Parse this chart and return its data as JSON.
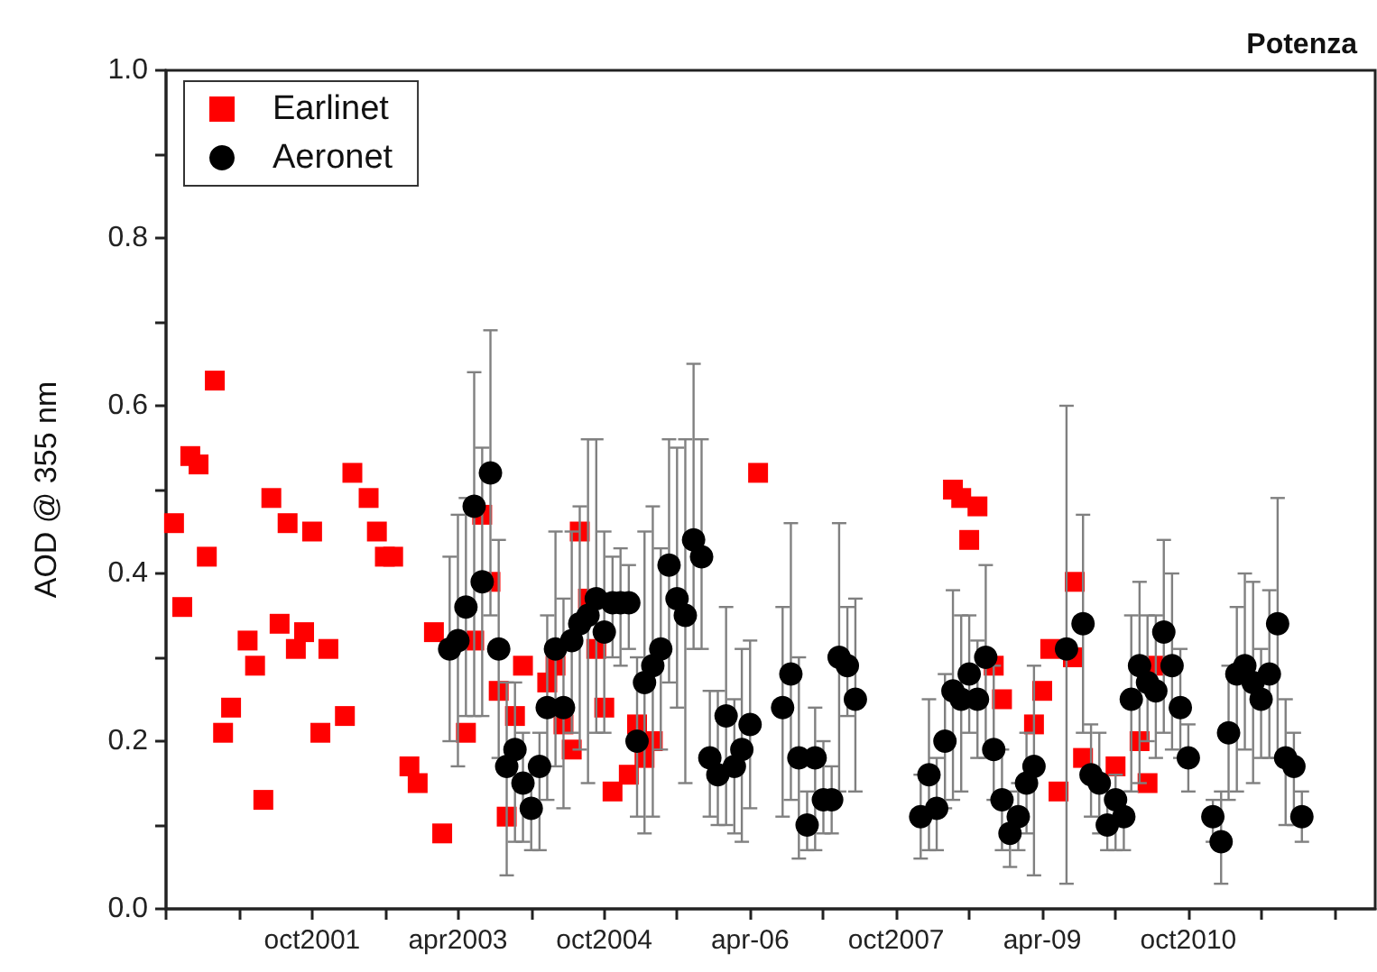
{
  "chart_data": {
    "type": "scatter",
    "title": "Potenza",
    "ylabel": "AOD @ 355 nm",
    "xlim": [
      "2000-04",
      "2012-09"
    ],
    "xticks": [
      {
        "value": "2000-04",
        "label": null
      },
      {
        "value": "2001-01",
        "label": null
      },
      {
        "value": "2001-10",
        "label": "oct2001"
      },
      {
        "value": "2002-07",
        "label": null
      },
      {
        "value": "2003-04",
        "label": "apr2003"
      },
      {
        "value": "2004-01",
        "label": null
      },
      {
        "value": "2004-10",
        "label": "oct2004"
      },
      {
        "value": "2005-07",
        "label": null
      },
      {
        "value": "2006-04",
        "label": "apr-06"
      },
      {
        "value": "2007-01",
        "label": null
      },
      {
        "value": "2007-10",
        "label": "oct2007"
      },
      {
        "value": "2008-07",
        "label": null
      },
      {
        "value": "2009-04",
        "label": "apr-09"
      },
      {
        "value": "2010-01",
        "label": null
      },
      {
        "value": "2010-10",
        "label": "oct2010"
      },
      {
        "value": "2011-07",
        "label": null
      },
      {
        "value": "2012-04",
        "label": null
      }
    ],
    "ylim": [
      0,
      1
    ],
    "yticks": [
      {
        "value": 0,
        "label": "0.0"
      },
      {
        "value": 0.1,
        "label": null
      },
      0.2,
      {
        "value": 0.3,
        "label": null
      },
      0.4,
      {
        "value": 0.5,
        "label": null
      },
      0.6,
      {
        "value": 0.7,
        "label": null
      },
      0.8,
      {
        "value": 0.9,
        "label": null
      },
      {
        "value": 1,
        "label": "1.0"
      }
    ],
    "grid": false,
    "legend": "top left",
    "series": [
      {
        "name": "Earlinet",
        "color": "#ff0000",
        "marker": "square",
        "x": [
          "2000-05",
          "2000-06",
          "2000-07",
          "2000-08",
          "2000-09",
          "2000-10",
          "2000-11",
          "2000-12",
          "2001-02",
          "2001-03",
          "2001-04",
          "2001-05",
          "2001-06",
          "2001-07",
          "2001-08",
          "2001-09",
          "2001-10",
          "2001-11",
          "2001-12",
          "2002-02",
          "2002-03",
          "2002-05",
          "2002-06",
          "2002-07",
          "2002-08",
          "2002-10",
          "2002-11",
          "2003-01",
          "2003-02",
          "2003-05",
          "2003-06",
          "2003-07",
          "2003-08",
          "2003-09",
          "2003-10",
          "2003-11",
          "2003-12",
          "2004-03",
          "2004-04",
          "2004-05",
          "2004-06",
          "2004-07",
          "2004-08",
          "2004-09",
          "2004-10",
          "2004-11",
          "2005-01",
          "2005-02",
          "2005-03",
          "2005-04",
          "2006-05",
          "2008-05",
          "2008-06",
          "2008-07",
          "2008-08",
          "2008-10",
          "2008-11",
          "2009-03",
          "2009-04",
          "2009-05",
          "2009-06",
          "2009-07-25",
          "2009-08",
          "2009-09",
          "2010-01",
          "2010-04",
          "2010-05",
          "2010-06"
        ],
        "values": [
          0.46,
          0.36,
          0.54,
          0.53,
          0.42,
          0.63,
          0.21,
          0.24,
          0.32,
          0.29,
          0.13,
          0.49,
          0.34,
          0.46,
          0.31,
          0.33,
          0.45,
          0.21,
          0.31,
          0.23,
          0.52,
          0.49,
          0.45,
          0.42,
          0.42,
          0.17,
          0.15,
          0.33,
          0.09,
          0.21,
          0.32,
          0.47,
          0.39,
          0.26,
          0.11,
          0.23,
          0.29,
          0.27,
          0.29,
          0.22,
          0.19,
          0.45,
          0.37,
          0.31,
          0.24,
          0.14,
          0.16,
          0.22,
          0.18,
          0.2,
          0.52,
          0.5,
          0.49,
          0.44,
          0.48,
          0.29,
          0.25,
          0.22,
          0.26,
          0.31,
          0.14,
          0.3,
          0.39,
          0.18,
          0.17,
          0.2,
          0.15,
          0.29
        ]
      },
      {
        "name": "Aeronet",
        "color": "#000000",
        "marker": "circle",
        "x": [
          "2003-03",
          "2003-04",
          "2003-05",
          "2003-06",
          "2003-07",
          "2003-08",
          "2003-09",
          "2003-10",
          "2003-11",
          "2003-12",
          "2004-01",
          "2004-02",
          "2004-03",
          "2004-04",
          "2004-05",
          "2004-06",
          "2004-07",
          "2004-08",
          "2004-09",
          "2004-10",
          "2004-11",
          "2004-12",
          "2005-01",
          "2005-02",
          "2005-03",
          "2005-04",
          "2005-05",
          "2005-06",
          "2005-07",
          "2005-08",
          "2005-09",
          "2005-10",
          "2005-11",
          "2005-12",
          "2006-01",
          "2006-02",
          "2006-03",
          "2006-04",
          "2006-08",
          "2006-09",
          "2006-10",
          "2006-11",
          "2006-12",
          "2007-01",
          "2007-02",
          "2007-03",
          "2007-04",
          "2007-05",
          "2008-01",
          "2008-02",
          "2008-03",
          "2008-04",
          "2008-05",
          "2008-06",
          "2008-07",
          "2008-08",
          "2008-09",
          "2008-10",
          "2008-11",
          "2008-12",
          "2009-01",
          "2009-02",
          "2009-03",
          "2009-07",
          "2009-09",
          "2009-10",
          "2009-11",
          "2009-12",
          "2010-01",
          "2010-02",
          "2010-03",
          "2010-04",
          "2010-05",
          "2010-06",
          "2010-07",
          "2010-08",
          "2010-09",
          "2010-10",
          "2011-01",
          "2011-02",
          "2011-03",
          "2011-04",
          "2011-05",
          "2011-06",
          "2011-07",
          "2011-08",
          "2011-09",
          "2011-10",
          "2011-11",
          "2011-12"
        ],
        "values": [
          0.31,
          0.32,
          0.36,
          0.48,
          0.39,
          0.52,
          0.31,
          0.17,
          0.19,
          0.15,
          0.12,
          0.17,
          0.24,
          0.31,
          0.24,
          0.32,
          0.34,
          0.35,
          0.37,
          0.33,
          0.365,
          0.365,
          0.365,
          0.2,
          0.27,
          0.29,
          0.31,
          0.41,
          0.37,
          0.35,
          0.44,
          0.42,
          0.18,
          0.16,
          0.23,
          0.17,
          0.19,
          0.22,
          0.24,
          0.28,
          0.18,
          0.1,
          0.18,
          0.13,
          0.13,
          0.3,
          0.29,
          0.25,
          0.11,
          0.16,
          0.12,
          0.2,
          0.26,
          0.25,
          0.28,
          0.25,
          0.3,
          0.19,
          0.13,
          0.09,
          0.11,
          0.15,
          0.17,
          0.31,
          0.34,
          0.16,
          0.15,
          0.1,
          0.13,
          0.11,
          0.25,
          0.29,
          0.27,
          0.26,
          0.33,
          0.29,
          0.24,
          0.18,
          0.11,
          0.08,
          0.21,
          0.28,
          0.29,
          0.27,
          0.25,
          0.28,
          0.34,
          0.18,
          0.17,
          0.11
        ],
        "errors": [
          [
            0.2,
            0.42
          ],
          [
            0.17,
            0.47
          ],
          [
            0.23,
            0.49
          ],
          [
            0.23,
            0.64
          ],
          [
            0.23,
            0.55
          ],
          [
            0.35,
            0.69
          ],
          [
            0.18,
            0.44
          ],
          [
            0.04,
            0.27
          ],
          [
            0.08,
            0.27
          ],
          [
            0.08,
            0.21
          ],
          [
            0.07,
            0.16
          ],
          [
            0.07,
            0.21
          ],
          [
            0.13,
            0.35
          ],
          [
            0.17,
            0.45
          ],
          [
            0.12,
            0.37
          ],
          [
            0.21,
            0.45
          ],
          [
            0.19,
            0.48
          ],
          [
            0.15,
            0.56
          ],
          [
            0.21,
            0.56
          ],
          [
            0.21,
            0.45
          ],
          [
            0.3,
            0.42
          ],
          [
            0.29,
            0.43
          ],
          [
            0.31,
            0.41
          ],
          [
            0.11,
            0.3
          ],
          [
            0.09,
            0.45
          ],
          [
            0.11,
            0.48
          ],
          [
            0.19,
            0.43
          ],
          [
            0.27,
            0.56
          ],
          [
            0.24,
            0.55
          ],
          [
            0.15,
            0.56
          ],
          [
            0.31,
            0.65
          ],
          [
            0.31,
            0.56
          ],
          [
            0.11,
            0.26
          ],
          [
            0.1,
            0.26
          ],
          [
            0.1,
            0.36
          ],
          [
            0.09,
            0.25
          ],
          [
            0.08,
            0.31
          ],
          [
            0.12,
            0.32
          ],
          [
            0.11,
            0.36
          ],
          [
            0.13,
            0.46
          ],
          [
            0.06,
            0.3
          ],
          [
            0.07,
            0.14
          ],
          [
            0.07,
            0.24
          ],
          [
            0.09,
            0.2
          ],
          [
            0.09,
            0.17
          ],
          [
            0.14,
            0.46
          ],
          [
            0.23,
            0.36
          ],
          [
            0.14,
            0.37
          ],
          [
            0.06,
            0.16
          ],
          [
            0.07,
            0.25
          ],
          [
            0.07,
            0.18
          ],
          [
            0.12,
            0.28
          ],
          [
            0.13,
            0.38
          ],
          [
            0.14,
            0.35
          ],
          [
            0.21,
            0.35
          ],
          [
            0.18,
            0.32
          ],
          [
            0.18,
            0.41
          ],
          [
            0.13,
            0.29
          ],
          [
            0.07,
            0.19
          ],
          [
            0.05,
            0.14
          ],
          [
            0.07,
            0.15
          ],
          [
            0.09,
            0.21
          ],
          [
            0.04,
            0.29
          ],
          [
            0.03,
            0.6
          ],
          [
            0.21,
            0.47
          ],
          [
            0.11,
            0.22
          ],
          [
            0.09,
            0.21
          ],
          [
            0.07,
            0.14
          ],
          [
            0.07,
            0.16
          ],
          [
            0.07,
            0.14
          ],
          [
            0.14,
            0.35
          ],
          [
            0.15,
            0.39
          ],
          [
            0.2,
            0.35
          ],
          [
            0.18,
            0.35
          ],
          [
            0.21,
            0.44
          ],
          [
            0.19,
            0.4
          ],
          [
            0.18,
            0.31
          ],
          [
            0.14,
            0.22
          ],
          [
            0.08,
            0.13
          ],
          [
            0.03,
            0.14
          ],
          [
            0.13,
            0.29
          ],
          [
            0.14,
            0.36
          ],
          [
            0.19,
            0.4
          ],
          [
            0.15,
            0.39
          ],
          [
            0.18,
            0.31
          ],
          [
            0.18,
            0.38
          ],
          [
            0.18,
            0.49
          ],
          [
            0.1,
            0.25
          ],
          [
            0.1,
            0.21
          ],
          [
            0.08,
            0.14
          ]
        ]
      }
    ]
  }
}
